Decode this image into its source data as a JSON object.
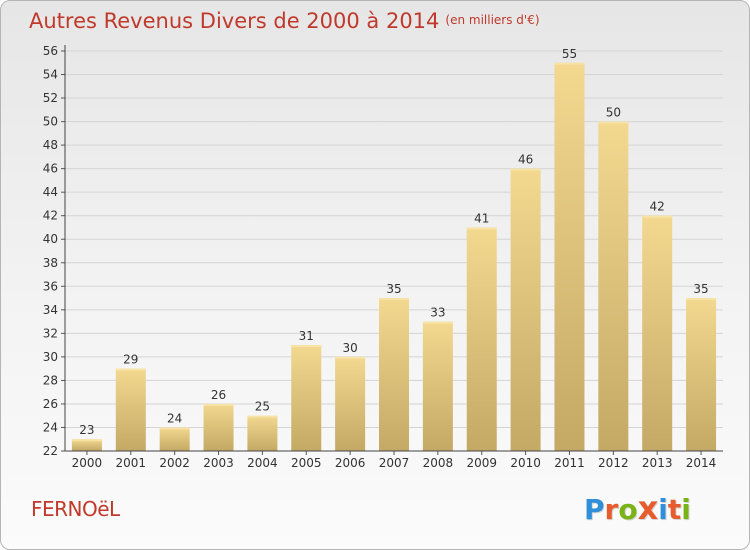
{
  "title": "Autres Revenus Divers de 2000 à 2014",
  "unit": "(en milliers d'€)",
  "commune": "FERNOëL",
  "brand": {
    "letters": [
      "P",
      "r",
      "o",
      "x",
      "i",
      "t",
      "i"
    ],
    "colors": [
      "#2f8fd8",
      "#e65c2e",
      "#7ab317",
      "#e65c2e",
      "#2f8fd8",
      "#e65c2e",
      "#7ab317"
    ]
  },
  "chart_data": {
    "type": "bar",
    "categories": [
      "2000",
      "2001",
      "2002",
      "2003",
      "2004",
      "2005",
      "2006",
      "2007",
      "2008",
      "2009",
      "2010",
      "2011",
      "2012",
      "2013",
      "2014"
    ],
    "values": [
      23,
      29,
      24,
      26,
      25,
      31,
      30,
      35,
      33,
      41,
      46,
      55,
      50,
      42,
      35
    ],
    "ylim": [
      22,
      56
    ],
    "yticks": [
      22,
      24,
      26,
      28,
      30,
      32,
      34,
      36,
      38,
      40,
      42,
      44,
      46,
      48,
      50,
      52,
      54,
      56
    ],
    "grid": true,
    "bar_color": "#e8c877"
  }
}
